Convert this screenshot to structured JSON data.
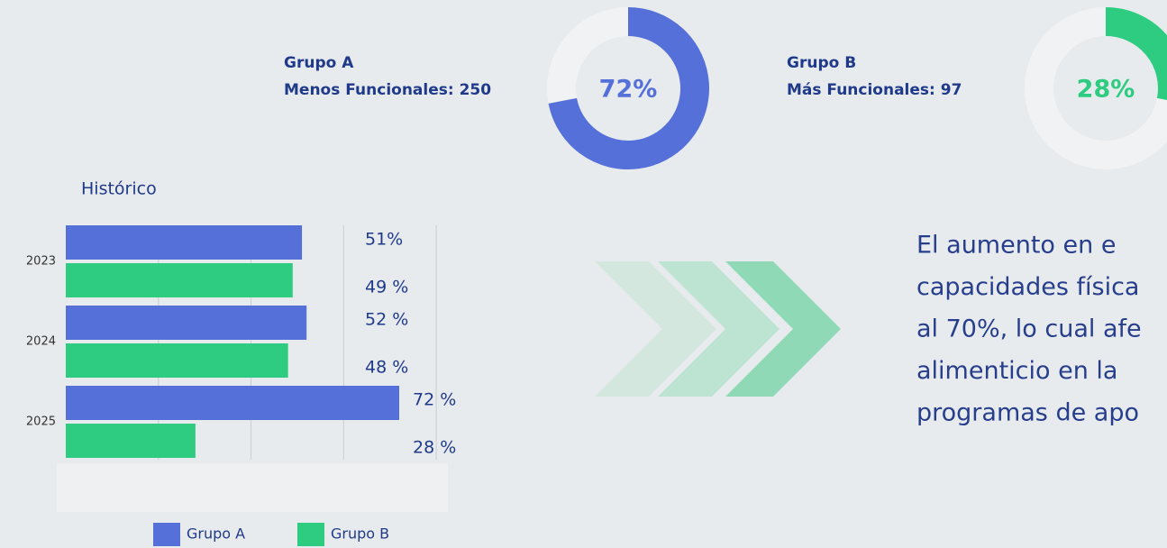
{
  "chart_data": [
    {
      "type": "donut",
      "title": "Grupo A",
      "subtitle": "Menos Funcionales: 250",
      "value": 72,
      "value_label": "72%",
      "color": "#5570d8",
      "track_color": "#f1f2f4"
    },
    {
      "type": "donut",
      "title": "Grupo B",
      "subtitle": "Más Funcionales: 97",
      "value": 28,
      "value_label": "28%",
      "color": "#2ecc80",
      "track_color": "#f1f2f4"
    },
    {
      "type": "bar",
      "orientation": "horizontal",
      "title": "Histórico",
      "categories": [
        "2023",
        "2024",
        "2025"
      ],
      "series": [
        {
          "name": "Grupo A",
          "color": "#5570d8",
          "values": [
            51,
            52,
            72
          ],
          "value_labels": [
            "51%",
            "52 %",
            "72 %"
          ]
        },
        {
          "name": "Grupo B",
          "color": "#2ecc80",
          "values": [
            49,
            48,
            28
          ],
          "value_labels": [
            "49 %",
            "48 %",
            "28 %"
          ]
        }
      ],
      "xlim": [
        0,
        100
      ],
      "xticks": [
        20,
        40,
        60,
        80
      ],
      "grid": true
    }
  ],
  "text": {
    "lines": [
      "El aumento en e",
      "capacidades física",
      "al 70%, lo cual afe",
      "alimenticio en la",
      "programas de apo"
    ]
  }
}
